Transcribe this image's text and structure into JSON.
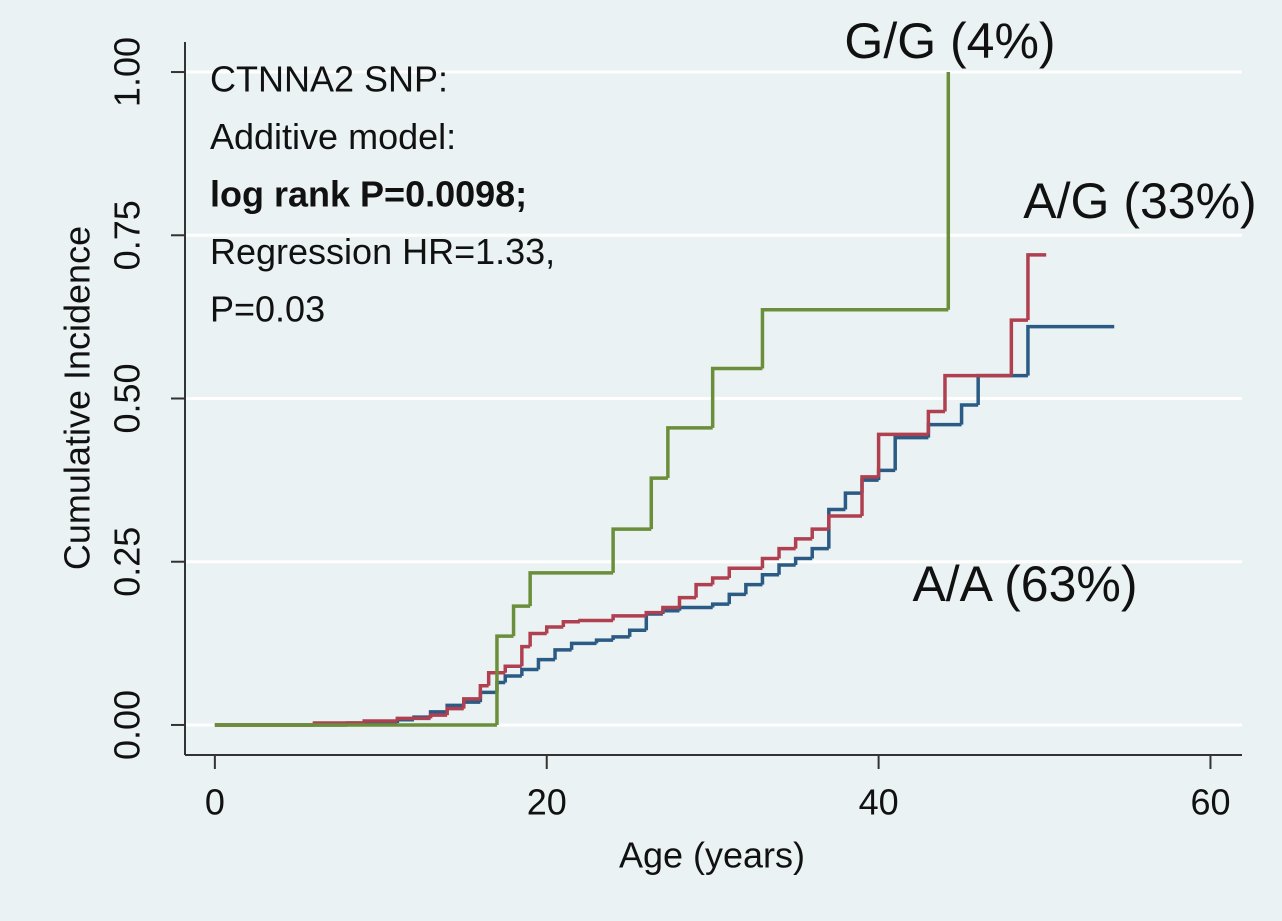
{
  "chart_data": {
    "type": "step",
    "xlabel": "Age (years)",
    "ylabel": "Cumulative Incidence",
    "xlim": [
      -1.8,
      61.9
    ],
    "xticks": [
      0,
      20,
      40,
      60
    ],
    "ylim": [
      -0.046,
      1.046
    ],
    "yticks": [
      {
        "value": 0,
        "label": "0.00"
      },
      {
        "value": 0.25,
        "label": "0.25"
      },
      {
        "value": 0.5,
        "label": "0.50"
      },
      {
        "value": 0.75,
        "label": "0.75"
      },
      {
        "value": 1,
        "label": "1.00"
      }
    ],
    "grid": true,
    "annotation": [
      "CTNNA2 SNP:",
      "Additive model:",
      "log rank P=0.0098;",
      "Regression HR=1.33,",
      "P=0.03"
    ],
    "series": [
      {
        "name": "A/A (63%)",
        "color": "#2b5b84",
        "x": [
          0,
          8,
          11,
          12,
          13,
          14,
          15,
          16,
          17,
          17.5,
          18.5,
          19.5,
          20.5,
          21.5,
          23,
          24,
          25,
          26,
          27,
          28,
          30,
          31,
          32,
          33,
          34,
          35,
          36,
          37,
          38,
          39,
          40,
          41,
          43,
          45,
          46,
          49,
          54.2
        ],
        "values": [
          0,
          0.003,
          0.008,
          0.012,
          0.02,
          0.03,
          0.035,
          0.05,
          0.065,
          0.075,
          0.085,
          0.1,
          0.115,
          0.125,
          0.13,
          0.135,
          0.145,
          0.17,
          0.175,
          0.18,
          0.185,
          0.2,
          0.215,
          0.23,
          0.245,
          0.255,
          0.27,
          0.33,
          0.355,
          0.375,
          0.39,
          0.44,
          0.46,
          0.49,
          0.535,
          0.61,
          0.61
        ]
      },
      {
        "name": "A/G (33%)",
        "color": "#b04050",
        "x": [
          0,
          6,
          9,
          11,
          13,
          14,
          15,
          16,
          16.5,
          17.5,
          18.5,
          19,
          20,
          21,
          22,
          24,
          26,
          27,
          28,
          29,
          30,
          31,
          33,
          34,
          35,
          36,
          37,
          39,
          40,
          43,
          44,
          48,
          49,
          50.1
        ],
        "values": [
          0,
          0.003,
          0.006,
          0.01,
          0.015,
          0.025,
          0.04,
          0.06,
          0.08,
          0.09,
          0.12,
          0.14,
          0.15,
          0.158,
          0.16,
          0.167,
          0.172,
          0.18,
          0.195,
          0.215,
          0.225,
          0.24,
          0.255,
          0.27,
          0.285,
          0.3,
          0.32,
          0.38,
          0.445,
          0.48,
          0.535,
          0.62,
          0.72,
          0.72
        ]
      },
      {
        "name": "G/G (4%)",
        "color": "#6b8e3a",
        "x": [
          0,
          17,
          18,
          19,
          24,
          26.3,
          27.3,
          30,
          33,
          44.2
        ],
        "values": [
          0,
          0.136,
          0.182,
          0.233,
          0.3,
          0.378,
          0.455,
          0.546,
          0.636,
          1.0
        ]
      }
    ]
  }
}
